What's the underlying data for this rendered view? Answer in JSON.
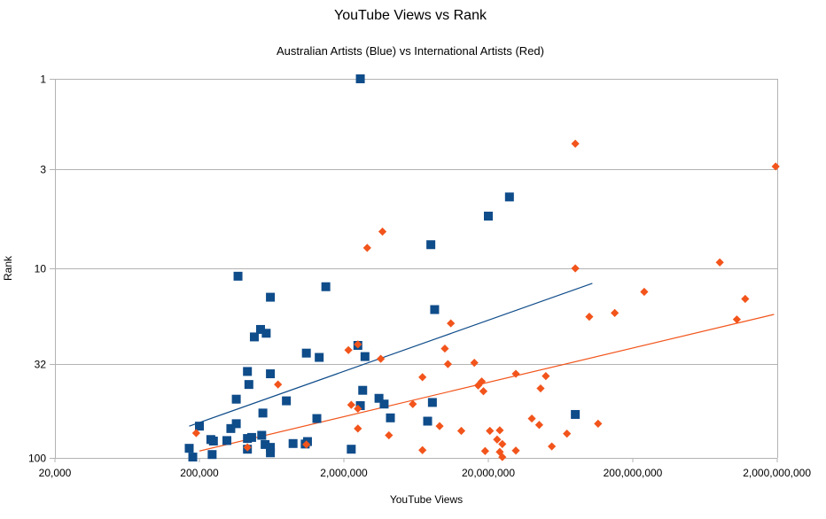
{
  "chart_data": {
    "type": "scatter",
    "title": "YouTube Views vs Rank",
    "subtitle": "Australian Artists (Blue) vs International Artists (Red)",
    "xlabel": "YouTube Views",
    "ylabel": "Rank",
    "x_scale": "log",
    "y_scale": "log",
    "y_reversed": true,
    "xlim": [
      20000,
      2000000000
    ],
    "ylim": [
      1,
      100
    ],
    "x_ticks": [
      20000,
      200000,
      2000000,
      20000000,
      200000000,
      2000000000
    ],
    "x_tick_labels": [
      "20,000",
      "200,000",
      "2,000,000",
      "20,000,000",
      "200,000,000",
      "2,000,000,000"
    ],
    "y_ticks": [
      1,
      3,
      10,
      32,
      100
    ],
    "y_tick_labels": [
      "1",
      "3",
      "10",
      "32",
      "100"
    ],
    "grid": "horizontal",
    "colors": {
      "australian": "#0f4c8a",
      "international": "#f2541b",
      "grid": "#b3b3b3",
      "axis": "#b3b3b3"
    },
    "series": [
      {
        "label": "Australian Artists (Blue)",
        "marker": "square",
        "color": "#0f4c8a",
        "points": [
          [
            2600000,
            1
          ],
          [
            28000000,
            4.2
          ],
          [
            20000000,
            5.3
          ],
          [
            8000000,
            7.5
          ],
          [
            370000,
            11
          ],
          [
            1500000,
            12.5
          ],
          [
            620000,
            14.2
          ],
          [
            8500000,
            16.5
          ],
          [
            530000,
            21
          ],
          [
            580000,
            22
          ],
          [
            480000,
            23
          ],
          [
            2500000,
            25.5
          ],
          [
            1100000,
            28
          ],
          [
            1350000,
            29.5
          ],
          [
            2800000,
            29.2
          ],
          [
            430000,
            35
          ],
          [
            620000,
            36
          ],
          [
            440000,
            41
          ],
          [
            2700000,
            44
          ],
          [
            3500000,
            48.5
          ],
          [
            800000,
            50
          ],
          [
            360000,
            49
          ],
          [
            2600000,
            53
          ],
          [
            3800000,
            52
          ],
          [
            8200000,
            51
          ],
          [
            550000,
            58
          ],
          [
            1300000,
            62
          ],
          [
            4200000,
            61.5
          ],
          [
            7600000,
            64
          ],
          [
            360000,
            66
          ],
          [
            200000,
            68
          ],
          [
            330000,
            70
          ],
          [
            540000,
            76
          ],
          [
            460000,
            78
          ],
          [
            430000,
            79
          ],
          [
            240000,
            80
          ],
          [
            310000,
            81
          ],
          [
            250000,
            81.5
          ],
          [
            1120000,
            82
          ],
          [
            890000,
            84
          ],
          [
            570000,
            85
          ],
          [
            1080000,
            84.5
          ],
          [
            620000,
            88
          ],
          [
            2250000,
            90
          ],
          [
            430000,
            90
          ],
          [
            170000,
            89
          ],
          [
            620000,
            94
          ],
          [
            245000,
            96
          ],
          [
            180000,
            99
          ],
          [
            80000000,
            59
          ]
        ]
      },
      {
        "label": "International Artists (Red)",
        "marker": "diamond",
        "color": "#f2541b",
        "points": [
          [
            80000000,
            2.2
          ],
          [
            1950000000,
            2.9
          ],
          [
            3700000,
            6.4
          ],
          [
            2900000,
            7.8
          ],
          [
            80000000,
            10
          ],
          [
            800000000,
            9.3
          ],
          [
            240000000,
            13.3
          ],
          [
            1200000000,
            14.5
          ],
          [
            150000000,
            17.2
          ],
          [
            100000000,
            18
          ],
          [
            1050000000,
            18.6
          ],
          [
            11000000,
            19.5
          ],
          [
            2500000,
            25.2
          ],
          [
            10000000,
            26.5
          ],
          [
            2150000,
            27
          ],
          [
            3600000,
            30
          ],
          [
            10500000,
            32
          ],
          [
            16000000,
            31.5
          ],
          [
            31000000,
            36
          ],
          [
            50000000,
            37
          ],
          [
            7000000,
            37.5
          ],
          [
            18000000,
            39.5
          ],
          [
            700000,
            41
          ],
          [
            17000000,
            41.5
          ],
          [
            46000000,
            43
          ],
          [
            18500000,
            44.5
          ],
          [
            6000000,
            52
          ],
          [
            2250000,
            52.5
          ],
          [
            2500000,
            55
          ],
          [
            40000000,
            62
          ],
          [
            45000000,
            67
          ],
          [
            115000000,
            66
          ],
          [
            9200000,
            68
          ],
          [
            2500000,
            70
          ],
          [
            13000000,
            72
          ],
          [
            20500000,
            72
          ],
          [
            24000000,
            71.5
          ],
          [
            190000,
            74
          ],
          [
            70000000,
            74.5
          ],
          [
            4100000,
            76
          ],
          [
            23000000,
            80
          ],
          [
            25000000,
            84.5
          ],
          [
            1100000,
            85
          ],
          [
            55000000,
            87
          ],
          [
            430000,
            88
          ],
          [
            7000000,
            91
          ],
          [
            19000000,
            92
          ],
          [
            24000000,
            93
          ],
          [
            25000000,
            99
          ],
          [
            31000000,
            91.5
          ]
        ]
      }
    ],
    "trendlines": [
      {
        "series": "Australian Artists (Blue)",
        "color": "#0f4c8a",
        "from": [
          170000,
          68
        ],
        "to": [
          105000000,
          12
        ]
      },
      {
        "series": "International Artists (Red)",
        "color": "#f2541b",
        "from": [
          200000,
          92
        ],
        "to": [
          1900000000,
          17.5
        ]
      }
    ]
  }
}
